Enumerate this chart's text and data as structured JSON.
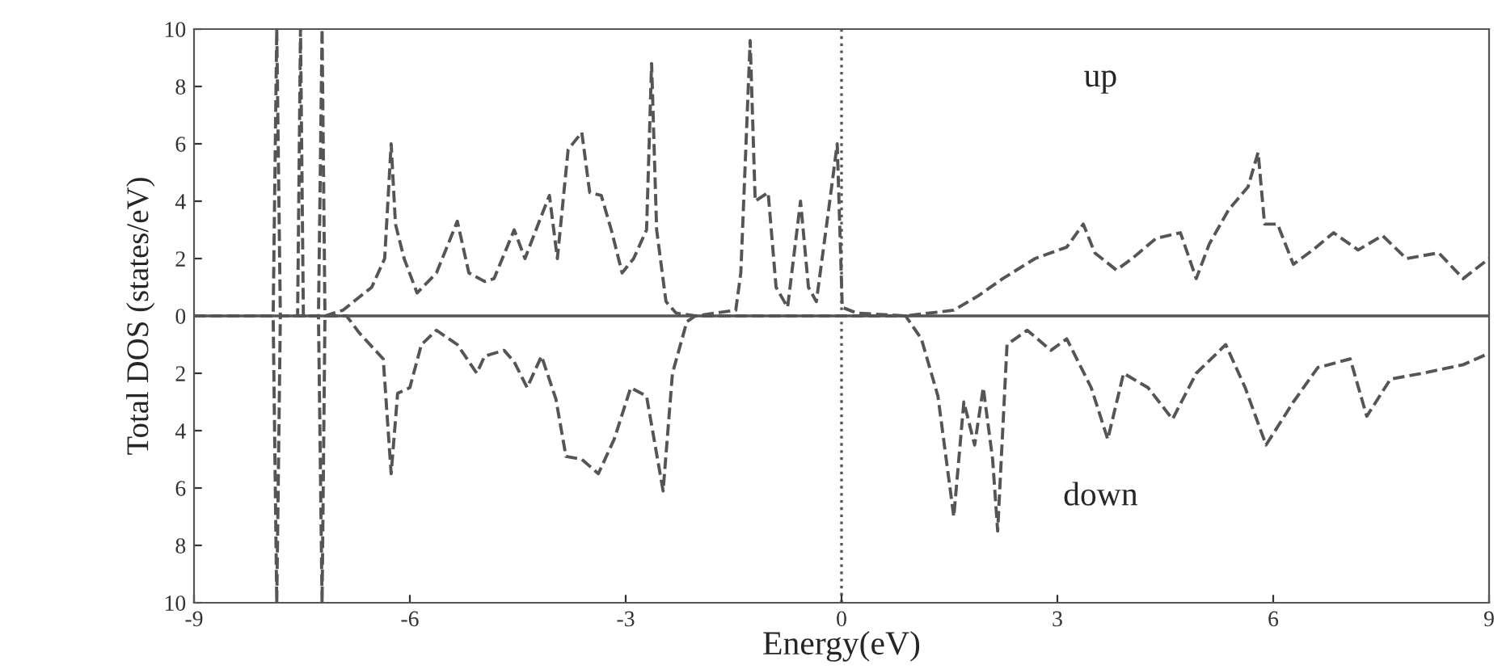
{
  "chart_data": {
    "type": "line",
    "xlabel": "Energy(eV)",
    "ylabel": "Total DOS (states/eV)",
    "annotations": [
      "up",
      "down"
    ],
    "xlim": [
      -9,
      9
    ],
    "xticks": [
      -9,
      -6,
      -3,
      0,
      3,
      6,
      9
    ],
    "ylim": [
      -10,
      10
    ],
    "yticks": [
      {
        "value": -10,
        "label": "10"
      },
      {
        "value": -8,
        "label": "8"
      },
      {
        "value": -6,
        "label": "6"
      },
      {
        "value": -4,
        "label": "4"
      },
      {
        "value": -2,
        "label": "2"
      },
      0,
      2,
      4,
      6,
      8,
      10
    ],
    "grid": false,
    "legend": false,
    "line_style": "dashed",
    "ref_lines": [
      {
        "axis": "y",
        "value": 0,
        "label": null,
        "color": "#555555",
        "line_style": "solid"
      },
      {
        "axis": "x",
        "value": 0,
        "label": null,
        "color": "#555555",
        "line_style": "dotted"
      }
    ],
    "series": [
      {
        "color": "#555555",
        "x": [
          -9,
          -7.9,
          -7.85,
          -7.8,
          -7.56,
          -7.52,
          -7.48,
          -7.27,
          -7.22,
          -7.18,
          -6.93,
          -6.53,
          -6.35,
          -6.26,
          -6.2,
          -6.08,
          -5.9,
          -5.63,
          -5.34,
          -5.18,
          -4.96,
          -4.83,
          -4.55,
          -4.4,
          -4.17,
          -4.06,
          -3.95,
          -3.8,
          -3.61,
          -3.5,
          -3.34,
          -3.2,
          -3.05,
          -2.89,
          -2.71,
          -2.64,
          -2.57,
          -2.44,
          -2.3,
          -2.03,
          -1.47,
          -1.4,
          -1.27,
          -1.2,
          -1.02,
          -0.91,
          -0.75,
          -0.57,
          -0.46,
          -0.35,
          -0.19,
          -0.06,
          0.01,
          0.21,
          0.89,
          1.56,
          1.9,
          2.24,
          2.69,
          3.13,
          3.36,
          3.52,
          3.82,
          4.04,
          4.37,
          4.71,
          4.93,
          5.11,
          5.38,
          5.65,
          5.79,
          5.88,
          6.06,
          6.28,
          6.55,
          6.84,
          7.18,
          7.52,
          7.85,
          8.3,
          8.64,
          9
        ],
        "values": [
          0,
          0,
          10,
          0,
          0,
          10,
          0,
          0,
          10,
          0,
          0.2,
          1.0,
          2.0,
          6.0,
          3.2,
          2.0,
          0.8,
          1.5,
          3.3,
          1.5,
          1.2,
          1.3,
          3.0,
          2.0,
          3.5,
          4.2,
          2.0,
          5.8,
          6.4,
          4.3,
          4.2,
          3.0,
          1.5,
          2.0,
          3.0,
          8.8,
          3.0,
          0.5,
          0.1,
          0,
          0.2,
          1.5,
          9.6,
          4.0,
          4.3,
          1.0,
          0.3,
          4.0,
          1.0,
          0.5,
          3.5,
          6.0,
          0.3,
          0.1,
          0,
          0.2,
          0.7,
          1.3,
          2.0,
          2.4,
          3.2,
          2.2,
          1.6,
          2.0,
          2.7,
          2.9,
          1.3,
          2.5,
          3.7,
          4.5,
          5.7,
          3.2,
          3.2,
          1.8,
          2.3,
          2.9,
          2.3,
          2.8,
          2.0,
          2.2,
          1.3,
          2.0
        ]
      },
      {
        "color": "#555555",
        "x": [
          -9,
          -7.9,
          -7.85,
          -7.8,
          -7.27,
          -7.22,
          -7.18,
          -6.88,
          -6.7,
          -6.37,
          -6.26,
          -6.17,
          -6.0,
          -5.84,
          -5.63,
          -5.34,
          -5.07,
          -4.96,
          -4.69,
          -4.55,
          -4.37,
          -4.17,
          -3.97,
          -3.83,
          -3.61,
          -3.38,
          -3.16,
          -2.93,
          -2.71,
          -2.48,
          -2.35,
          -2.15,
          -2.03,
          0.89,
          1.11,
          1.34,
          1.56,
          1.7,
          1.85,
          1.97,
          2.1,
          2.17,
          2.3,
          2.58,
          2.91,
          3.13,
          3.47,
          3.7,
          3.92,
          4.26,
          4.6,
          4.93,
          5.34,
          5.61,
          5.9,
          6.28,
          6.62,
          7.07,
          7.3,
          7.63,
          8.08,
          8.64,
          9
        ],
        "values": [
          0,
          0,
          -10,
          0,
          0,
          -10,
          0,
          0,
          -0.6,
          -1.5,
          -5.5,
          -2.7,
          -2.5,
          -1.0,
          -0.5,
          -1.0,
          -2.0,
          -1.4,
          -1.2,
          -1.6,
          -2.5,
          -1.4,
          -2.9,
          -4.9,
          -5.0,
          -5.5,
          -4.3,
          -2.5,
          -2.8,
          -6.1,
          -2.0,
          -0.2,
          0,
          0,
          -0.8,
          -2.8,
          -7.0,
          -3.0,
          -4.5,
          -2.5,
          -5.0,
          -7.5,
          -1.0,
          -0.5,
          -1.2,
          -0.8,
          -2.5,
          -4.3,
          -2.0,
          -2.5,
          -3.6,
          -2.0,
          -1.0,
          -2.5,
          -4.5,
          -3.0,
          -1.8,
          -1.5,
          -3.5,
          -2.2,
          -2.0,
          -1.7,
          -1.3
        ]
      }
    ]
  }
}
